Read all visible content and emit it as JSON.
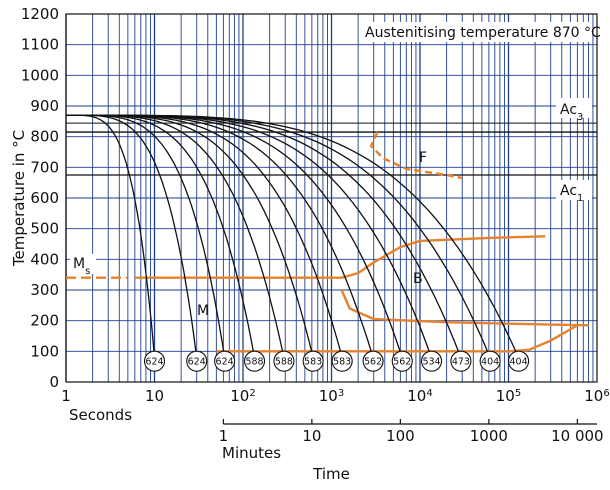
{
  "chart_data": {
    "type": "line",
    "title": "",
    "ylabel": "Temperature in °C",
    "xlabel": "Time",
    "x_scale": "log",
    "grid": true,
    "colors": {
      "grid": "#1e3f8f",
      "curves": "#111111",
      "phase": "#e8822a",
      "hardness_fill": "#ffffff"
    },
    "ylim": [
      0,
      1200
    ],
    "xlim_seconds": [
      1,
      1000000
    ],
    "y_ticks": [
      0,
      100,
      200,
      300,
      400,
      500,
      600,
      700,
      800,
      900,
      1000,
      1100,
      1200
    ],
    "seconds_axis": {
      "label": "Seconds",
      "ticks": [
        {
          "value": 1,
          "base": "1",
          "exp": ""
        },
        {
          "value": 10,
          "base": "10",
          "exp": ""
        },
        {
          "value": 100,
          "base": "10",
          "exp": "2"
        },
        {
          "value": 1000,
          "base": "10",
          "exp": "3"
        },
        {
          "value": 10000,
          "base": "10",
          "exp": "4"
        },
        {
          "value": 100000,
          "base": "10",
          "exp": "5"
        },
        {
          "value": 1000000,
          "base": "10",
          "exp": "6"
        }
      ]
    },
    "minutes_axis": {
      "label": "Minutes",
      "ticks": [
        {
          "value": 60,
          "label": "1"
        },
        {
          "value": 600,
          "label": "10"
        },
        {
          "value": 6000,
          "label": "100"
        },
        {
          "value": 60000,
          "label": "1000"
        },
        {
          "value": 600000,
          "label": "10 000"
        }
      ]
    },
    "annotations": {
      "austenitising": "Austenitising temperature 870 °C",
      "ac3": {
        "base": "Ac",
        "sub": "3",
        "temp": 815
      },
      "ac1": {
        "base": "Ac",
        "sub": "1",
        "temp": 675
      },
      "ms": {
        "base": "M",
        "sub": "s",
        "temp": 340
      },
      "ferrite": "F",
      "bainite": "B",
      "martensite": "M"
    },
    "phase_boundaries": [
      {
        "name": "ferrite-start",
        "points": [
          [
            3300,
            815
          ],
          [
            2800,
            770
          ],
          [
            3800,
            730
          ],
          [
            7000,
            695
          ],
          [
            20000,
            675
          ],
          [
            30000,
            665
          ]
        ]
      },
      {
        "name": "ms-line",
        "dashed": true,
        "points": [
          [
            1,
            340
          ],
          [
            5,
            340
          ]
        ]
      },
      {
        "name": "bainite-start-lower",
        "points": [
          [
            6,
            340
          ],
          [
            100,
            340
          ],
          [
            1300,
            340
          ],
          [
            2000,
            355
          ],
          [
            3000,
            390
          ],
          [
            6000,
            440
          ],
          [
            10000,
            460
          ],
          [
            60000,
            470
          ],
          [
            260000,
            475
          ]
        ]
      },
      {
        "name": "bainite-finish",
        "points": [
          [
            1300,
            300
          ],
          [
            1600,
            240
          ],
          [
            3000,
            205
          ],
          [
            20000,
            195
          ],
          [
            100000,
            190
          ],
          [
            800000,
            185
          ]
        ]
      },
      {
        "name": "martensite-finish",
        "points": [
          [
            50,
            100
          ],
          [
            1600,
            100
          ],
          [
            5000,
            100
          ],
          [
            100000,
            100
          ],
          [
            170000,
            105
          ],
          [
            300000,
            135
          ],
          [
            600000,
            185
          ]
        ]
      }
    ],
    "cooling_curves": [
      {
        "hardness": 624,
        "end_seconds": 10
      },
      {
        "hardness": 624,
        "end_seconds": 30
      },
      {
        "hardness": 624,
        "end_seconds": 62
      },
      {
        "hardness": 588,
        "end_seconds": 135
      },
      {
        "hardness": 588,
        "end_seconds": 290
      },
      {
        "hardness": 583,
        "end_seconds": 620
      },
      {
        "hardness": 583,
        "end_seconds": 1320
      },
      {
        "hardness": 562,
        "end_seconds": 2950
      },
      {
        "hardness": 562,
        "end_seconds": 6300
      },
      {
        "hardness": 534,
        "end_seconds": 13500
      },
      {
        "hardness": 473,
        "end_seconds": 29000
      },
      {
        "hardness": 404,
        "end_seconds": 62000
      },
      {
        "hardness": 404,
        "end_seconds": 130000
      }
    ]
  }
}
